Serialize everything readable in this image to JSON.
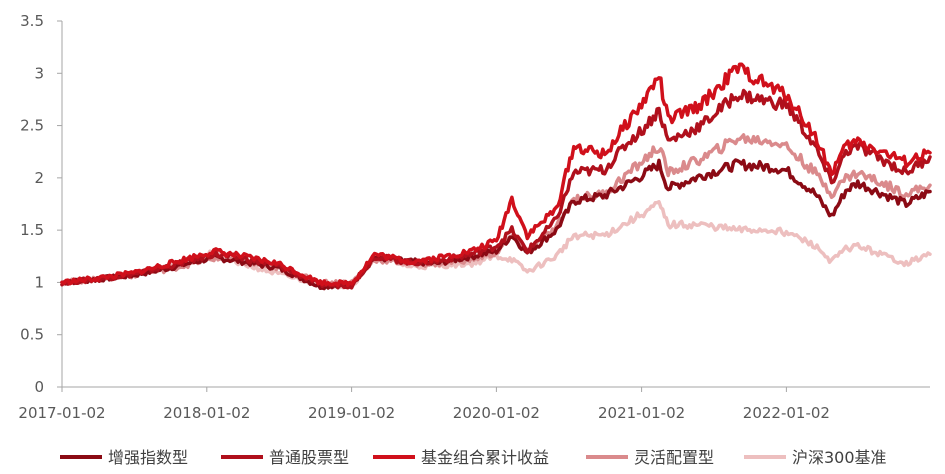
{
  "chart_data": {
    "type": "line",
    "title": "",
    "xlabel": "",
    "ylabel": "",
    "x_ticks": [
      "2017-01-02",
      "2018-01-02",
      "2019-01-02",
      "2020-01-02",
      "2021-01-02",
      "2022-01-02"
    ],
    "y_ticks": [
      "0",
      "0.5",
      "1",
      "1.5",
      "2",
      "2.5",
      "3",
      "3.5"
    ],
    "xlim": [
      "2017-01-02",
      "2022-12-30"
    ],
    "ylim": [
      0,
      3.5
    ],
    "grid": false,
    "legend_position": "bottom",
    "series": [
      {
        "name": "增强指数型",
        "color": "#8B0A14",
        "points": [
          [
            "2017-01-02",
            1.0
          ],
          [
            "2017-04-01",
            1.03
          ],
          [
            "2017-07-01",
            1.07
          ],
          [
            "2017-10-01",
            1.14
          ],
          [
            "2018-01-20",
            1.24
          ],
          [
            "2018-04-01",
            1.2
          ],
          [
            "2018-07-01",
            1.14
          ],
          [
            "2018-10-15",
            0.96
          ],
          [
            "2019-01-02",
            0.98
          ],
          [
            "2019-03-01",
            1.24
          ],
          [
            "2019-06-01",
            1.2
          ],
          [
            "2019-08-01",
            1.18
          ],
          [
            "2019-11-01",
            1.25
          ],
          [
            "2020-01-02",
            1.3
          ],
          [
            "2020-02-10",
            1.45
          ],
          [
            "2020-03-20",
            1.28
          ],
          [
            "2020-06-01",
            1.5
          ],
          [
            "2020-07-15",
            1.78
          ],
          [
            "2020-10-01",
            1.83
          ],
          [
            "2020-12-01",
            1.95
          ],
          [
            "2021-01-02",
            2.02
          ],
          [
            "2021-02-15",
            2.13
          ],
          [
            "2021-03-10",
            1.9
          ],
          [
            "2021-06-01",
            2.02
          ],
          [
            "2021-09-01",
            2.13
          ],
          [
            "2021-12-01",
            2.1
          ],
          [
            "2022-01-02",
            2.07
          ],
          [
            "2022-03-15",
            1.85
          ],
          [
            "2022-04-26",
            1.63
          ],
          [
            "2022-06-01",
            1.88
          ],
          [
            "2022-07-01",
            1.95
          ],
          [
            "2022-10-31",
            1.75
          ],
          [
            "2022-12-30",
            1.87
          ]
        ]
      },
      {
        "name": "普通股票型",
        "color": "#B0101C",
        "points": [
          [
            "2017-01-02",
            1.0
          ],
          [
            "2017-04-01",
            1.03
          ],
          [
            "2017-07-01",
            1.08
          ],
          [
            "2017-10-01",
            1.16
          ],
          [
            "2018-01-20",
            1.27
          ],
          [
            "2018-04-01",
            1.23
          ],
          [
            "2018-07-01",
            1.16
          ],
          [
            "2018-10-15",
            0.98
          ],
          [
            "2019-01-02",
            0.97
          ],
          [
            "2019-03-01",
            1.25
          ],
          [
            "2019-06-01",
            1.19
          ],
          [
            "2019-08-01",
            1.2
          ],
          [
            "2019-11-01",
            1.27
          ],
          [
            "2020-01-02",
            1.35
          ],
          [
            "2020-02-10",
            1.5
          ],
          [
            "2020-03-20",
            1.3
          ],
          [
            "2020-06-01",
            1.6
          ],
          [
            "2020-07-15",
            2.05
          ],
          [
            "2020-10-01",
            2.08
          ],
          [
            "2020-12-01",
            2.35
          ],
          [
            "2021-01-02",
            2.45
          ],
          [
            "2021-02-15",
            2.65
          ],
          [
            "2021-03-10",
            2.35
          ],
          [
            "2021-06-01",
            2.5
          ],
          [
            "2021-09-01",
            2.8
          ],
          [
            "2021-12-01",
            2.72
          ],
          [
            "2022-01-02",
            2.7
          ],
          [
            "2022-03-15",
            2.3
          ],
          [
            "2022-04-26",
            1.95
          ],
          [
            "2022-06-01",
            2.25
          ],
          [
            "2022-07-01",
            2.3
          ],
          [
            "2022-10-31",
            2.05
          ],
          [
            "2022-12-30",
            2.2
          ]
        ]
      },
      {
        "name": "基金组合累计收益",
        "color": "#D0101B",
        "points": [
          [
            "2017-01-02",
            1.0
          ],
          [
            "2017-04-01",
            1.04
          ],
          [
            "2017-07-01",
            1.09
          ],
          [
            "2017-10-01",
            1.18
          ],
          [
            "2018-01-20",
            1.3
          ],
          [
            "2018-04-01",
            1.25
          ],
          [
            "2018-07-01",
            1.18
          ],
          [
            "2018-10-15",
            1.0
          ],
          [
            "2019-01-02",
            0.99
          ],
          [
            "2019-03-01",
            1.27
          ],
          [
            "2019-06-01",
            1.2
          ],
          [
            "2019-08-01",
            1.23
          ],
          [
            "2019-11-01",
            1.3
          ],
          [
            "2020-01-02",
            1.4
          ],
          [
            "2020-02-10",
            1.8
          ],
          [
            "2020-03-20",
            1.45
          ],
          [
            "2020-06-01",
            1.7
          ],
          [
            "2020-07-15",
            2.3
          ],
          [
            "2020-10-01",
            2.22
          ],
          [
            "2020-12-01",
            2.55
          ],
          [
            "2021-01-02",
            2.7
          ],
          [
            "2021-02-15",
            2.98
          ],
          [
            "2021-03-10",
            2.55
          ],
          [
            "2021-06-01",
            2.7
          ],
          [
            "2021-09-01",
            3.05
          ],
          [
            "2021-12-01",
            2.85
          ],
          [
            "2022-01-02",
            2.8
          ],
          [
            "2022-03-15",
            2.4
          ],
          [
            "2022-04-26",
            2.05
          ],
          [
            "2022-06-01",
            2.3
          ],
          [
            "2022-07-01",
            2.35
          ],
          [
            "2022-10-31",
            2.15
          ],
          [
            "2022-12-30",
            2.24
          ]
        ]
      },
      {
        "name": "灵活配置型",
        "color": "#DA8A8C",
        "points": [
          [
            "2017-01-02",
            1.0
          ],
          [
            "2017-04-01",
            1.03
          ],
          [
            "2017-07-01",
            1.07
          ],
          [
            "2017-10-01",
            1.13
          ],
          [
            "2018-01-20",
            1.23
          ],
          [
            "2018-04-01",
            1.2
          ],
          [
            "2018-07-01",
            1.14
          ],
          [
            "2018-10-15",
            1.0
          ],
          [
            "2019-01-02",
            1.0
          ],
          [
            "2019-03-01",
            1.22
          ],
          [
            "2019-06-01",
            1.18
          ],
          [
            "2019-08-01",
            1.18
          ],
          [
            "2019-11-01",
            1.22
          ],
          [
            "2020-01-02",
            1.28
          ],
          [
            "2020-02-10",
            1.45
          ],
          [
            "2020-03-20",
            1.3
          ],
          [
            "2020-06-01",
            1.52
          ],
          [
            "2020-07-15",
            1.8
          ],
          [
            "2020-10-01",
            1.85
          ],
          [
            "2020-12-01",
            2.05
          ],
          [
            "2021-01-02",
            2.15
          ],
          [
            "2021-02-15",
            2.3
          ],
          [
            "2021-03-10",
            2.05
          ],
          [
            "2021-06-01",
            2.18
          ],
          [
            "2021-09-01",
            2.38
          ],
          [
            "2021-12-01",
            2.35
          ],
          [
            "2022-01-02",
            2.3
          ],
          [
            "2022-03-15",
            2.05
          ],
          [
            "2022-04-26",
            1.85
          ],
          [
            "2022-06-01",
            2.0
          ],
          [
            "2022-07-01",
            2.05
          ],
          [
            "2022-10-31",
            1.85
          ],
          [
            "2022-12-30",
            1.93
          ]
        ]
      },
      {
        "name": "沪深300基准",
        "color": "#EDBFBF",
        "points": [
          [
            "2017-01-02",
            1.0
          ],
          [
            "2017-04-01",
            1.03
          ],
          [
            "2017-07-01",
            1.08
          ],
          [
            "2017-10-01",
            1.15
          ],
          [
            "2018-01-20",
            1.3
          ],
          [
            "2018-04-01",
            1.18
          ],
          [
            "2018-07-01",
            1.08
          ],
          [
            "2018-10-15",
            0.98
          ],
          [
            "2019-01-02",
            0.96
          ],
          [
            "2019-03-01",
            1.25
          ],
          [
            "2019-06-01",
            1.15
          ],
          [
            "2019-08-01",
            1.16
          ],
          [
            "2019-11-01",
            1.18
          ],
          [
            "2020-01-02",
            1.25
          ],
          [
            "2020-02-10",
            1.22
          ],
          [
            "2020-03-20",
            1.1
          ],
          [
            "2020-06-01",
            1.25
          ],
          [
            "2020-07-15",
            1.45
          ],
          [
            "2020-10-01",
            1.45
          ],
          [
            "2020-12-01",
            1.58
          ],
          [
            "2021-01-02",
            1.65
          ],
          [
            "2021-02-15",
            1.75
          ],
          [
            "2021-03-10",
            1.55
          ],
          [
            "2021-06-01",
            1.55
          ],
          [
            "2021-09-01",
            1.5
          ],
          [
            "2021-12-01",
            1.5
          ],
          [
            "2022-01-02",
            1.48
          ],
          [
            "2022-03-15",
            1.35
          ],
          [
            "2022-04-26",
            1.2
          ],
          [
            "2022-06-01",
            1.32
          ],
          [
            "2022-07-01",
            1.35
          ],
          [
            "2022-10-31",
            1.18
          ],
          [
            "2022-12-30",
            1.27
          ]
        ]
      }
    ]
  }
}
